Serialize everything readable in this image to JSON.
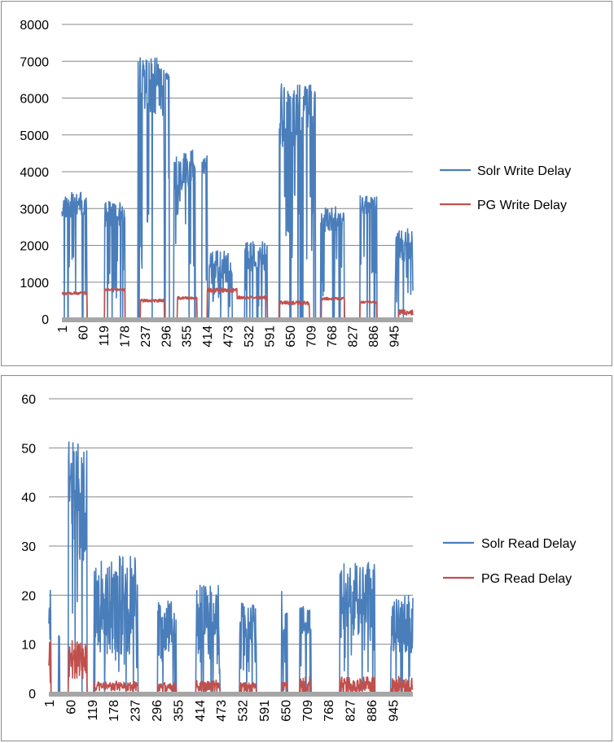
{
  "colors": {
    "solr": "#4a7ebb",
    "pg": "#c0504d",
    "grid": "#888888",
    "axis": "#a6a6a6"
  },
  "chart_data": [
    {
      "type": "line",
      "title": "",
      "xlabel": "",
      "ylabel": "",
      "ylim": [
        0,
        8000
      ],
      "yticks": [
        "0",
        "1000",
        "2000",
        "3000",
        "4000",
        "5000",
        "6000",
        "7000",
        "8000"
      ],
      "xtick_labels": [
        "1",
        "60",
        "119",
        "178",
        "237",
        "296",
        "355",
        "414",
        "473",
        "532",
        "591",
        "650",
        "709",
        "768",
        "827",
        "886",
        "945"
      ],
      "x_range": [
        1,
        1000
      ],
      "grid": "horizontal",
      "legend": "right",
      "series": [
        {
          "name": "Solr Write Delay",
          "color": "#4a7ebb",
          "segments": [
            {
              "x": [
                1,
                10,
                72
              ],
              "level": 3100,
              "amp": 350,
              "start": 0
            },
            {
              "x": [
                123,
                180
              ],
              "level": 2850,
              "amp": 350,
              "start": 0
            },
            {
              "x": [
                218,
                292
              ],
              "level": 6300,
              "amp": 800,
              "start": 0
            },
            {
              "x": [
                296,
                306
              ],
              "level": 6600,
              "amp": 100,
              "start": 0
            },
            {
              "x": [
                320,
                345
              ],
              "level": 3600,
              "amp": 800,
              "start": 0
            },
            {
              "x": [
                345,
                380
              ],
              "level": 4100,
              "amp": 500,
              "start": 0
            },
            {
              "x": [
                400,
                415
              ],
              "level": 4200,
              "amp": 250,
              "start": 0
            },
            {
              "x": [
                420,
                485
              ],
              "level": 1400,
              "amp": 450,
              "start": 0
            },
            {
              "x": [
                522,
                585
              ],
              "level": 1700,
              "amp": 400,
              "start": 0
            },
            {
              "x": [
                620,
                684
              ],
              "level": 5500,
              "amp": 900,
              "start": 0
            },
            {
              "x": [
                688,
                722
              ],
              "level": 5800,
              "amp": 600,
              "start": 0
            },
            {
              "x": [
                738,
                805
              ],
              "level": 2700,
              "amp": 350,
              "start": 0
            },
            {
              "x": [
                850,
                897
              ],
              "level": 3100,
              "amp": 250,
              "start": 0
            },
            {
              "x": [
                950,
                1000
              ],
              "level": 2000,
              "amp": 450,
              "start": 0
            }
          ]
        },
        {
          "name": "PG Write Delay",
          "color": "#c0504d",
          "segments": [
            {
              "x": [
                1,
                10,
                72
              ],
              "level": 700,
              "amp": 40
            },
            {
              "x": [
                123,
                180
              ],
              "level": 800,
              "amp": 30
            },
            {
              "x": [
                225,
                292
              ],
              "level": 500,
              "amp": 40
            },
            {
              "x": [
                330,
                385
              ],
              "level": 570,
              "amp": 40
            },
            {
              "x": [
                415,
                500
              ],
              "level": 780,
              "amp": 60
            },
            {
              "x": [
                500,
                585
              ],
              "level": 580,
              "amp": 40
            },
            {
              "x": [
                620,
                705
              ],
              "level": 430,
              "amp": 60
            },
            {
              "x": [
                740,
                805
              ],
              "level": 550,
              "amp": 40
            },
            {
              "x": [
                850,
                897
              ],
              "level": 460,
              "amp": 30
            },
            {
              "x": [
                960,
                1000
              ],
              "level": 180,
              "amp": 80
            }
          ]
        }
      ]
    },
    {
      "type": "line",
      "title": "",
      "xlabel": "",
      "ylabel": "",
      "ylim": [
        0,
        60
      ],
      "yticks": [
        "0",
        "10",
        "20",
        "30",
        "40",
        "50",
        "60"
      ],
      "xtick_labels": [
        "1",
        "60",
        "119",
        "178",
        "237",
        "296",
        "355",
        "414",
        "473",
        "532",
        "591",
        "650",
        "709",
        "768",
        "827",
        "886",
        "945"
      ],
      "x_range": [
        1,
        1000
      ],
      "grid": "horizontal",
      "legend": "right",
      "series": [
        {
          "name": "Solr Read Delay",
          "color": "#4a7ebb",
          "segments": [
            {
              "x": [
                1,
                6
              ],
              "level": 17,
              "amp": 6
            },
            {
              "x": [
                28,
                30
              ],
              "level": 12,
              "amp": 1
            },
            {
              "x": [
                55,
                105
              ],
              "level": 40,
              "amp": 12
            },
            {
              "x": [
                125,
                245
              ],
              "level": 18,
              "amp": 10
            },
            {
              "x": [
                300,
                350
              ],
              "level": 13,
              "amp": 6
            },
            {
              "x": [
                405,
                470
              ],
              "level": 15,
              "amp": 7
            },
            {
              "x": [
                525,
                570
              ],
              "level": 14,
              "amp": 5
            },
            {
              "x": [
                640,
                655
              ],
              "level": 16,
              "amp": 5
            },
            {
              "x": [
                690,
                720
              ],
              "level": 15,
              "amp": 3
            },
            {
              "x": [
                800,
                895
              ],
              "level": 20,
              "amp": 7
            },
            {
              "x": [
                940,
                1000
              ],
              "level": 14,
              "amp": 6
            }
          ]
        },
        {
          "name": "PG Read Delay",
          "color": "#c0504d",
          "segments": [
            {
              "x": [
                1,
                6
              ],
              "level": 8,
              "amp": 6
            },
            {
              "x": [
                55,
                105
              ],
              "level": 7,
              "amp": 4
            },
            {
              "x": [
                125,
                245
              ],
              "level": 1.5,
              "amp": 1
            },
            {
              "x": [
                300,
                350
              ],
              "level": 1.2,
              "amp": 1
            },
            {
              "x": [
                405,
                470
              ],
              "level": 1.5,
              "amp": 1.2
            },
            {
              "x": [
                525,
                570
              ],
              "level": 1.2,
              "amp": 1
            },
            {
              "x": [
                640,
                655
              ],
              "level": 1.5,
              "amp": 1
            },
            {
              "x": [
                690,
                720
              ],
              "level": 1.5,
              "amp": 2
            },
            {
              "x": [
                800,
                895
              ],
              "level": 1.5,
              "amp": 2
            },
            {
              "x": [
                940,
                1000
              ],
              "level": 1.5,
              "amp": 2
            }
          ]
        }
      ]
    }
  ]
}
